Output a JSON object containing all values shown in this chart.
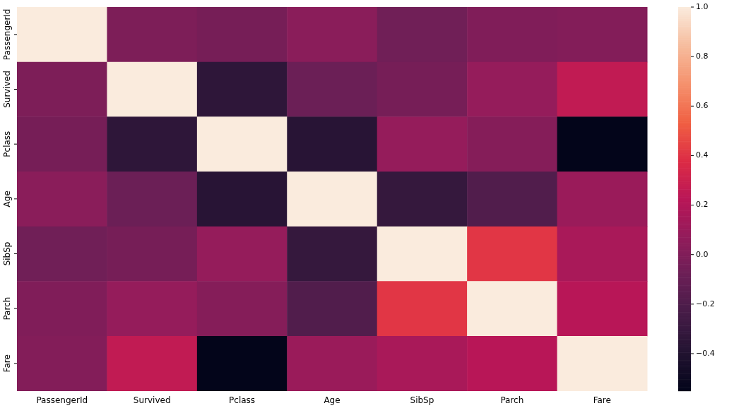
{
  "chart_data": {
    "type": "heatmap",
    "categories": [
      "PassengerId",
      "Survived",
      "Pclass",
      "Age",
      "SibSp",
      "Parch",
      "Fare"
    ],
    "y_categories": [
      "PassengerId",
      "Survived",
      "Pclass",
      "Age",
      "SibSp",
      "Parch",
      "Fare"
    ],
    "cells": [
      [
        1.0,
        -0.01,
        -0.04,
        0.04,
        -0.06,
        -0.0,
        0.01
      ],
      [
        -0.01,
        1.0,
        -0.34,
        -0.08,
        -0.04,
        0.08,
        0.26
      ],
      [
        -0.04,
        -0.34,
        1.0,
        -0.37,
        0.08,
        0.02,
        -0.55
      ],
      [
        0.04,
        -0.08,
        -0.37,
        1.0,
        -0.31,
        -0.19,
        0.1
      ],
      [
        -0.06,
        -0.04,
        0.08,
        -0.31,
        1.0,
        0.41,
        0.16
      ],
      [
        -0.0,
        0.08,
        0.02,
        -0.19,
        0.41,
        1.0,
        0.22
      ],
      [
        0.01,
        0.26,
        -0.55,
        0.1,
        0.16,
        0.22,
        1.0
      ]
    ],
    "clim": [
      -0.55,
      1.0
    ],
    "cticks": [
      {
        "value": -0.4,
        "label": "−0.4"
      },
      {
        "value": -0.2,
        "label": "−0.2"
      },
      {
        "value": 0.0,
        "label": "0.0"
      },
      {
        "value": 0.2,
        "label": "0.2"
      },
      {
        "value": 0.4,
        "label": "0.4"
      },
      {
        "value": 0.6,
        "label": "0.6"
      },
      {
        "value": 0.8,
        "label": "0.8"
      },
      {
        "value": 1.0,
        "label": "1.0"
      }
    ]
  }
}
